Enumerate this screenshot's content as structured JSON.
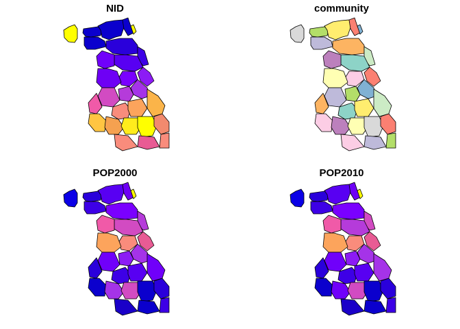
{
  "figure": {
    "panels": [
      {
        "title": "NID",
        "palette": "sf",
        "fills": [
          "#FFFF00",
          "#0B00CD",
          "#0B00CD",
          "#0B00CD",
          "#FFFF00",
          "#0B00CD",
          "#2A00DB",
          "#3D00E6",
          "#5800F2",
          "#7000FA",
          "#7A00FF",
          "#6E00F5",
          "#8C1BF5",
          "#A533E8",
          "#B53BDA",
          "#D24BC2",
          "#F05AA8",
          "#F98C7C",
          "#FCA45C",
          "#FBB449",
          "#FFC542",
          "#F5A150",
          "#FFEC1C",
          "#FFFF00",
          "#F28A6E",
          "#E85B94",
          "#F98C7C",
          "#F98C7C"
        ]
      },
      {
        "title": "community",
        "palette": "set3",
        "fills": [
          "#D9D9D9",
          "#B3DE69",
          "#FFED6F",
          "#FB8072",
          "#80B1D3",
          "#BEBADA",
          "#FDB462",
          "#CCEBC5",
          "#8DD3C7",
          "#BC80BD",
          "#FCCDE5",
          "#FFFFB3",
          "#FB8072",
          "#80B1D3",
          "#B3DE69",
          "#BEBADA",
          "#FDB462",
          "#8DD3C7",
          "#FFED6F",
          "#CCEBC5",
          "#FCCDE5",
          "#BC80BD",
          "#FFFFB3",
          "#D9D9D9",
          "#FB8072",
          "#BEBADA",
          "#B3DE69",
          "#FCCDE5"
        ]
      },
      {
        "title": "POP2000",
        "palette": "sf",
        "fills": [
          "#0B00E6",
          "#2A00DB",
          "#5800F2",
          "#6E00F5",
          "#FFFF00",
          "#3D00E6",
          "#7A00FF",
          "#B53BDA",
          "#D24BC2",
          "#F05AA8",
          "#F98C7C",
          "#FCA45C",
          "#E85B94",
          "#A533E8",
          "#8C1BF5",
          "#7000FA",
          "#2A00DB",
          "#3D00E6",
          "#5800F2",
          "#7000FA",
          "#0B00CD",
          "#A533E8",
          "#D24BC2",
          "#0B00CD",
          "#2A00DB",
          "#0B00CD",
          "#3D00E6",
          "#1A00C8"
        ]
      },
      {
        "title": "POP2010",
        "palette": "sf",
        "fills": [
          "#0B00E6",
          "#2A00DB",
          "#5800F2",
          "#6E00F5",
          "#FFFF00",
          "#3D00E6",
          "#7A00FF",
          "#D24BC2",
          "#B53BDA",
          "#F05AA8",
          "#F98C7C",
          "#FCA45C",
          "#E85B94",
          "#A533E8",
          "#8C1BF5",
          "#7000FA",
          "#2A00DB",
          "#3D00E6",
          "#5800F2",
          "#A533E8",
          "#0B00CD",
          "#7000FA",
          "#D24BC2",
          "#0B00CD",
          "#2A00DB",
          "#0B00CD",
          "#3D00E6",
          "#1A00C8"
        ]
      }
    ]
  }
}
